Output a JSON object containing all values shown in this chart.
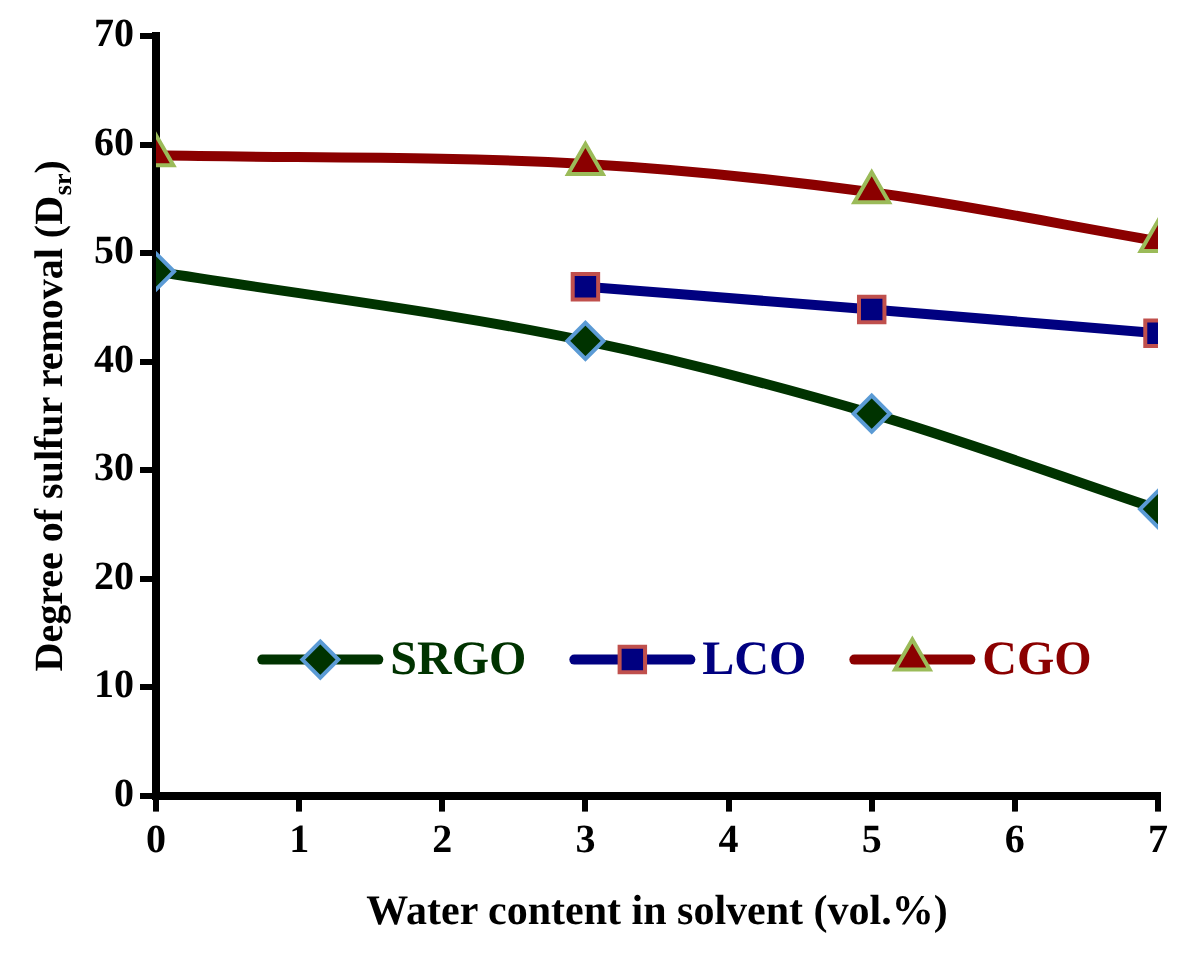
{
  "chart_data": {
    "type": "line",
    "xlabel": "Water content in solvent (vol.%)",
    "ylabel": "Degree of sulfur removal (D$_{sr}$)",
    "x": [
      0,
      3,
      5,
      7
    ],
    "series": [
      {
        "name": "SRGO",
        "color": "#003300",
        "marker": "diamond",
        "values": [
          48.3,
          41.9,
          35.2,
          26.4
        ]
      },
      {
        "name": "LCO",
        "color": "#000080",
        "marker": "square",
        "values": [
          null,
          46.9,
          44.8,
          42.6
        ]
      },
      {
        "name": "CGO",
        "color": "#8b0000",
        "marker": "triangle",
        "values": [
          59.0,
          58.2,
          55.6,
          51.1
        ]
      }
    ],
    "xlim": [
      0,
      7
    ],
    "xticks": [
      0,
      1,
      2,
      3,
      4,
      5,
      6,
      7
    ],
    "ylim": [
      0,
      70
    ],
    "yticks": [
      0,
      10,
      20,
      30,
      40,
      50,
      60,
      70
    ],
    "grid": false,
    "legend": "bottom",
    "line_style": "solid"
  }
}
